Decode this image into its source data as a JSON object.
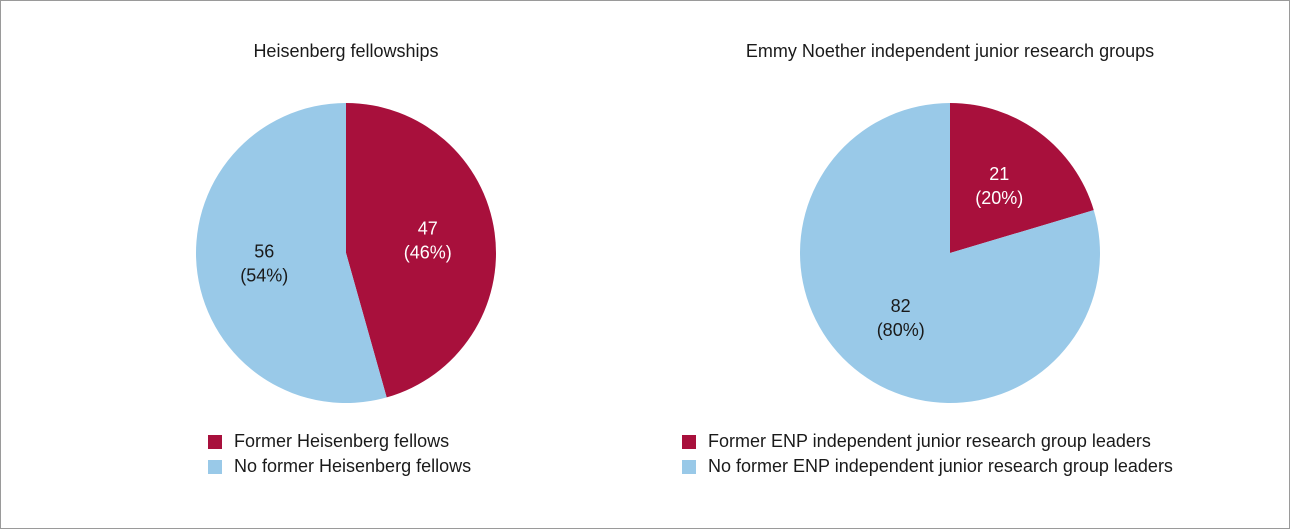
{
  "chart_data": [
    {
      "type": "pie",
      "title": "Heisenberg fellowships",
      "categories": [
        "Former Heisenberg fellows",
        "No former Heisenberg fellows"
      ],
      "values": [
        47,
        56
      ],
      "value_labels": [
        "47\n(46%)",
        "56\n(54%)"
      ],
      "colors": [
        "#a8103c",
        "#99c9e8"
      ],
      "legend": "bottom-left"
    },
    {
      "type": "pie",
      "title": "Emmy Noether independent junior research groups",
      "categories": [
        "Former ENP independent junior research group leaders",
        "No former ENP independent junior research group leaders"
      ],
      "values": [
        21,
        82
      ],
      "value_labels": [
        "21\n(20%)",
        "82\n(80%)"
      ],
      "colors": [
        "#a8103c",
        "#99c9e8"
      ],
      "legend": "bottom-left"
    }
  ]
}
